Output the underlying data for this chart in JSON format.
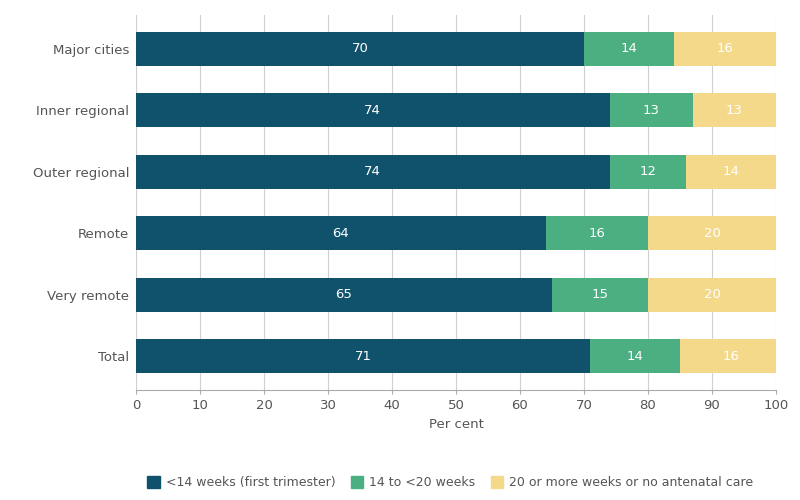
{
  "categories": [
    "Major cities",
    "Inner regional",
    "Outer regional",
    "Remote",
    "Very remote",
    "Total"
  ],
  "series": [
    {
      "label": "<14 weeks (first trimester)",
      "values": [
        70,
        74,
        74,
        64,
        65,
        71
      ],
      "color": "#10526b"
    },
    {
      "label": "14 to <20 weeks",
      "values": [
        14,
        13,
        12,
        16,
        15,
        14
      ],
      "color": "#4caf82"
    },
    {
      "label": "20 or more weeks or no antenatal care",
      "values": [
        16,
        13,
        14,
        20,
        20,
        16
      ],
      "color": "#f5d98b"
    }
  ],
  "xlabel": "Per cent",
  "xlim": [
    0,
    100
  ],
  "xticks": [
    0,
    10,
    20,
    30,
    40,
    50,
    60,
    70,
    80,
    90,
    100
  ],
  "bar_height": 0.55,
  "label_fontsize": 9.5,
  "axis_fontsize": 9.5,
  "legend_fontsize": 9,
  "text_color_dark": "#ffffff",
  "text_color_light": "#333333",
  "background_color": "#ffffff",
  "grid_color": "#d0d0d0"
}
